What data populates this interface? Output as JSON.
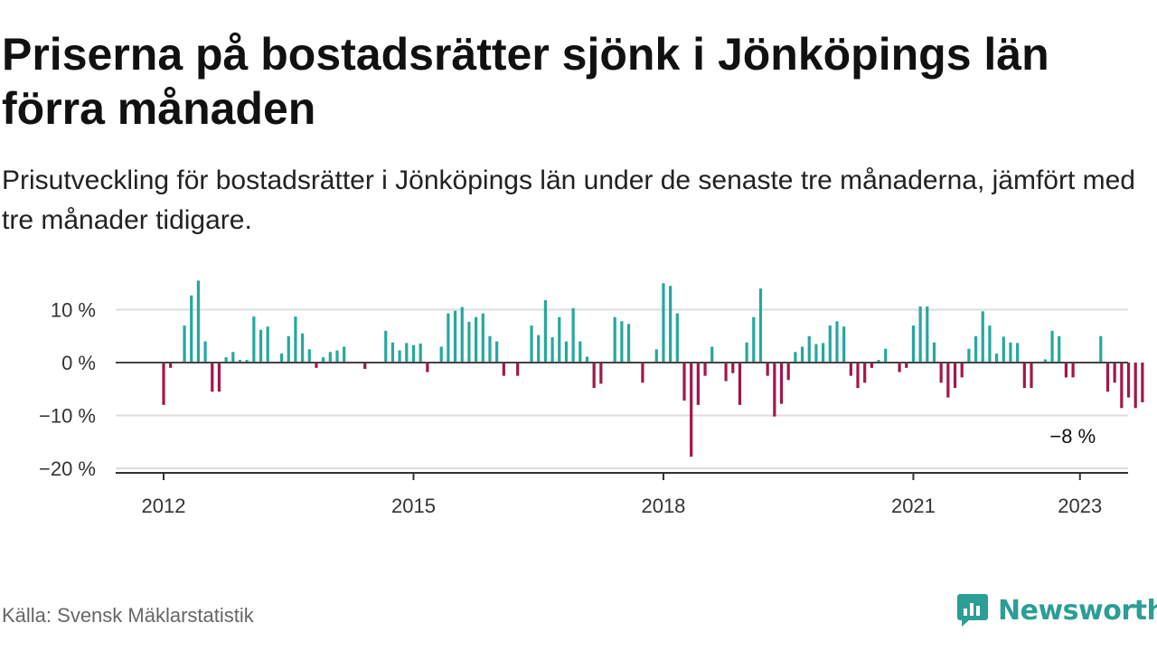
{
  "title": "Priserna på bostadsrätter sjönk i Jönköpings län förra månaden",
  "subtitle": "Prisutveckling för bostadsrätter i Jönköpings län under de senaste tre månaderna, jämfört med tre månader tidigare.",
  "source": "Källa: Svensk Mäklarstatistik",
  "brand": {
    "name": "Newsworthy",
    "color": "#2c9e96",
    "icon": "newsworthy-logo-icon"
  },
  "chart_data": {
    "type": "bar",
    "title": "",
    "xlabel": "",
    "ylabel": "",
    "x_start": "2012-01",
    "ylim": [
      -21,
      17
    ],
    "yticks": [
      10,
      0,
      -10,
      -20
    ],
    "ytick_labels": [
      "10 %",
      "0 %",
      "−10 %",
      "−20 %"
    ],
    "xticks": [
      "2012",
      "2015",
      "2018",
      "2021",
      "2023"
    ],
    "grid": true,
    "colors": {
      "positive": "#25a89d",
      "negative": "#a3164a"
    },
    "annotation": {
      "label": "−8 %",
      "x": "2023-01",
      "value": -7.5
    },
    "values": [
      -8,
      -1,
      0,
      7,
      12.7,
      15.5,
      4,
      -5.5,
      -5.5,
      1,
      2,
      0.5,
      0.5,
      8.7,
      6.2,
      6.8,
      0,
      1.7,
      5,
      8.7,
      5.5,
      2.5,
      -1,
      1,
      2,
      2.3,
      3,
      0,
      0,
      -1.2,
      0,
      0,
      6,
      3.8,
      2.3,
      3.7,
      3.3,
      3.6,
      -1.8,
      0,
      3,
      9.3,
      9.8,
      10.5,
      7.7,
      8.6,
      9.3,
      5,
      4,
      -2.5,
      0,
      -2.5,
      0,
      7,
      5.2,
      11.8,
      4.8,
      8.6,
      4,
      10.3,
      4,
      1.1,
      -4.8,
      -4,
      0,
      8.6,
      7.8,
      7.3,
      0,
      -3.8,
      0,
      2.5,
      15,
      14.5,
      9.3,
      -7.2,
      -17.8,
      -8,
      -2.5,
      3,
      0,
      -3.5,
      -2,
      -8,
      3.8,
      8.6,
      14,
      -2.5,
      -10.2,
      -7.8,
      -3.3,
      2,
      3,
      5,
      3.5,
      3.7,
      7,
      7.8,
      6.8,
      -2.5,
      -4.8,
      -3.8,
      -1,
      0.5,
      2.6,
      0,
      -1.8,
      -1,
      7,
      10.6,
      10.6,
      3.8,
      -3.8,
      -6.6,
      -4.8,
      -2.8,
      2.6,
      5,
      9.7,
      7,
      1.7,
      4.9,
      3.8,
      3.7,
      -4.8,
      -4.8,
      0,
      0.6,
      6,
      5,
      -2.8,
      -2.8,
      0,
      0,
      0,
      5,
      -5.5,
      -3.8,
      -8.6,
      -6.6,
      -8.6,
      -7.5
    ]
  }
}
